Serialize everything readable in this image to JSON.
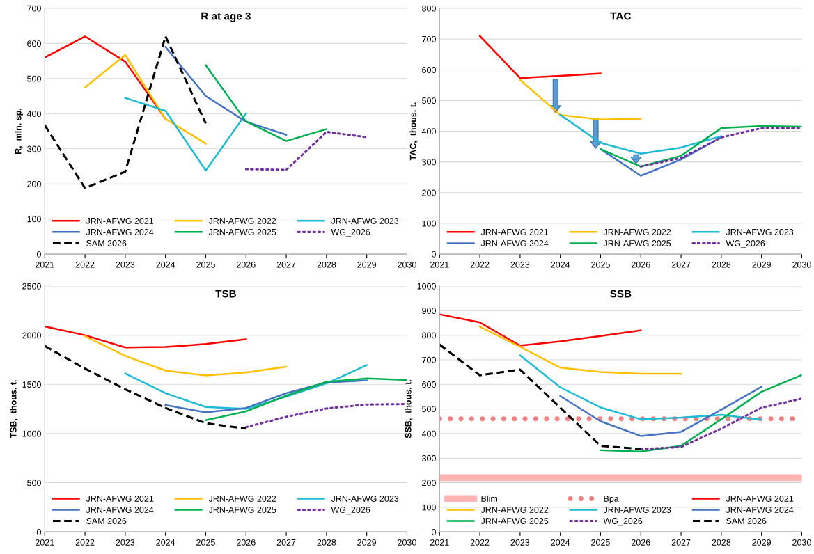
{
  "chart_data": [
    {
      "type": "line",
      "title": "R at age 3",
      "ylabel": "R,  mln. sp.",
      "xlim": [
        2021,
        2030
      ],
      "xticks": [
        2021,
        2022,
        2023,
        2024,
        2025,
        2026,
        2027,
        2028,
        2029,
        2030
      ],
      "ylim": [
        0,
        700
      ],
      "yticks": [
        0,
        100,
        200,
        300,
        400,
        500,
        600,
        700
      ],
      "grid": "y",
      "legend": "bottom",
      "series": [
        {
          "name": "JRN-AFWG 2021",
          "color": "#ff0000",
          "x": [
            2021,
            2022,
            2023,
            2024
          ],
          "values": [
            560,
            620,
            548,
            385
          ]
        },
        {
          "name": "JRN-AFWG 2022",
          "color": "#ffc000",
          "x": [
            2022,
            2023,
            2024,
            2025
          ],
          "values": [
            475,
            567,
            385,
            315
          ]
        },
        {
          "name": "JRN-AFWG 2023",
          "color": "#1fbad6",
          "x": [
            2023,
            2024,
            2025,
            2026
          ],
          "values": [
            445,
            408,
            238,
            400
          ]
        },
        {
          "name": "JRN-AFWG 2024",
          "color": "#4472c4",
          "x": [
            2024,
            2025,
            2026,
            2027
          ],
          "values": [
            590,
            450,
            377,
            340
          ]
        },
        {
          "name": "JRN-AFWG 2025",
          "color": "#00b050",
          "x": [
            2025,
            2026,
            2027,
            2028
          ],
          "values": [
            538,
            378,
            322,
            356
          ]
        },
        {
          "name": "WG_2026",
          "color": "#7030a0",
          "line_style": "dotted",
          "x": [
            2026,
            2027,
            2028,
            2029
          ],
          "values": [
            242,
            240,
            348,
            333
          ]
        },
        {
          "name": "SAM 2026",
          "color": "#000000",
          "line_style": "dashed",
          "x": [
            2021,
            2022,
            2023,
            2024,
            2025
          ],
          "values": [
            367,
            188,
            235,
            620,
            372
          ]
        }
      ]
    },
    {
      "type": "line",
      "title": "TAC",
      "ylabel": "TAC,  thous. t.",
      "xlim": [
        2021,
        2030
      ],
      "xticks": [
        2021,
        2022,
        2023,
        2024,
        2025,
        2026,
        2027,
        2028,
        2029,
        2030
      ],
      "ylim": [
        0,
        800
      ],
      "yticks": [
        0,
        100,
        200,
        300,
        400,
        500,
        600,
        700,
        800
      ],
      "grid": "y",
      "legend": "bottom",
      "series": [
        {
          "name": "JRN-AFWG 2021",
          "color": "#ff0000",
          "x": [
            2022,
            2023,
            2024,
            2025
          ],
          "values": [
            710,
            573,
            580,
            588
          ]
        },
        {
          "name": "JRN-AFWG 2022",
          "color": "#ffc000",
          "x": [
            2023,
            2024,
            2025,
            2026
          ],
          "values": [
            567,
            453,
            438,
            441
          ]
        },
        {
          "name": "JRN-AFWG 2023",
          "color": "#1fbad6",
          "x": [
            2024,
            2025,
            2026,
            2027,
            2028
          ],
          "values": [
            453,
            362,
            327,
            347,
            384
          ]
        },
        {
          "name": "JRN-AFWG 2024",
          "color": "#4472c4",
          "x": [
            2025,
            2026,
            2027,
            2028
          ],
          "values": [
            342,
            255,
            308,
            380
          ]
        },
        {
          "name": "JRN-AFWG 2025",
          "color": "#00b050",
          "x": [
            2025,
            2026,
            2027,
            2028,
            2029,
            2030
          ],
          "values": [
            342,
            285,
            320,
            410,
            417,
            415
          ]
        },
        {
          "name": "WG_2026",
          "color": "#7030a0",
          "line_style": "dotted",
          "x": [
            2026,
            2027,
            2028,
            2029,
            2030
          ],
          "values": [
            285,
            313,
            380,
            410,
            410
          ]
        }
      ]
    },
    {
      "type": "line",
      "title": "TSB",
      "ylabel": "TSB,  thous. t.",
      "xlim": [
        2021,
        2030
      ],
      "xticks": [
        2021,
        2022,
        2023,
        2024,
        2025,
        2026,
        2027,
        2028,
        2029,
        2030
      ],
      "ylim": [
        0,
        2500
      ],
      "yticks": [
        0,
        500,
        1000,
        1500,
        2000,
        2500
      ],
      "grid": "y",
      "legend": "bottom",
      "series": [
        {
          "name": "JRN-AFWG 2021",
          "color": "#ff0000",
          "x": [
            2021,
            2022,
            2023,
            2024,
            2025,
            2026
          ],
          "values": [
            2090,
            2000,
            1875,
            1880,
            1910,
            1960
          ]
        },
        {
          "name": "JRN-AFWG 2022",
          "color": "#ffc000",
          "x": [
            2022,
            2023,
            2024,
            2025,
            2026,
            2027
          ],
          "values": [
            1990,
            1790,
            1640,
            1590,
            1620,
            1680
          ]
        },
        {
          "name": "JRN-AFWG 2023",
          "color": "#1fbad6",
          "x": [
            2023,
            2024,
            2025,
            2026,
            2027,
            2028,
            2029
          ],
          "values": [
            1610,
            1410,
            1270,
            1250,
            1375,
            1510,
            1695
          ]
        },
        {
          "name": "JRN-AFWG 2024",
          "color": "#4472c4",
          "x": [
            2024,
            2025,
            2026,
            2027,
            2028,
            2029
          ],
          "values": [
            1290,
            1215,
            1260,
            1410,
            1520,
            1540
          ]
        },
        {
          "name": "JRN-AFWG 2025",
          "color": "#00b050",
          "x": [
            2025,
            2026,
            2027,
            2028,
            2029,
            2030
          ],
          "values": [
            1135,
            1225,
            1385,
            1525,
            1560,
            1545
          ]
        },
        {
          "name": "WG_2026",
          "color": "#7030a0",
          "line_style": "dotted",
          "x": [
            2026,
            2027,
            2028,
            2029,
            2030
          ],
          "values": [
            1065,
            1170,
            1255,
            1295,
            1300
          ]
        },
        {
          "name": "SAM 2026",
          "color": "#000000",
          "line_style": "dashed",
          "x": [
            2021,
            2022,
            2023,
            2024,
            2025,
            2026
          ],
          "values": [
            1890,
            1660,
            1450,
            1260,
            1105,
            1050
          ]
        }
      ]
    },
    {
      "type": "line",
      "title": "SSB",
      "ylabel": "SSB,  thous. t.",
      "xlim": [
        2021,
        2030
      ],
      "xticks": [
        2021,
        2022,
        2023,
        2024,
        2025,
        2026,
        2027,
        2028,
        2029,
        2030
      ],
      "ylim": [
        0,
        1000
      ],
      "yticks": [
        0,
        100,
        200,
        300,
        400,
        500,
        600,
        700,
        800,
        900,
        1000
      ],
      "grid": "y",
      "legend": "bottom",
      "ref_lines": [
        {
          "axis": "y",
          "value": 220,
          "label": "Blim",
          "color": "#ffb3b3",
          "line_style": "solid"
        },
        {
          "axis": "y",
          "value": 460,
          "label": "Bpa",
          "color": "#f08080",
          "line_style": "dotted"
        }
      ],
      "series": [
        {
          "name": "JRN-AFWG 2021",
          "color": "#ff0000",
          "x": [
            2021,
            2022,
            2023,
            2024,
            2025,
            2026
          ],
          "values": [
            885,
            852,
            758,
            775,
            797,
            820
          ]
        },
        {
          "name": "JRN-AFWG 2022",
          "color": "#ffc000",
          "x": [
            2022,
            2023,
            2024,
            2025,
            2026,
            2027
          ],
          "values": [
            835,
            753,
            668,
            650,
            643,
            643
          ]
        },
        {
          "name": "JRN-AFWG 2023",
          "color": "#1fbad6",
          "x": [
            2023,
            2024,
            2025,
            2026,
            2027,
            2028,
            2029
          ],
          "values": [
            718,
            588,
            506,
            458,
            465,
            476,
            456
          ]
        },
        {
          "name": "JRN-AFWG 2024",
          "color": "#4472c4",
          "x": [
            2024,
            2025,
            2026,
            2027,
            2028,
            2029
          ],
          "values": [
            552,
            450,
            390,
            407,
            497,
            590
          ]
        },
        {
          "name": "JRN-AFWG 2025",
          "color": "#00b050",
          "x": [
            2025,
            2026,
            2027,
            2028,
            2029,
            2030
          ],
          "values": [
            332,
            327,
            350,
            458,
            570,
            638
          ]
        },
        {
          "name": "WG_2026",
          "color": "#7030a0",
          "line_style": "dotted",
          "x": [
            2026,
            2027,
            2028,
            2029,
            2030
          ],
          "values": [
            337,
            345,
            420,
            505,
            542
          ]
        },
        {
          "name": "SAM 2026",
          "color": "#000000",
          "line_style": "dashed",
          "x": [
            2021,
            2022,
            2023,
            2024,
            2025,
            2026
          ],
          "values": [
            762,
            637,
            660,
            505,
            350,
            337
          ]
        }
      ]
    }
  ]
}
